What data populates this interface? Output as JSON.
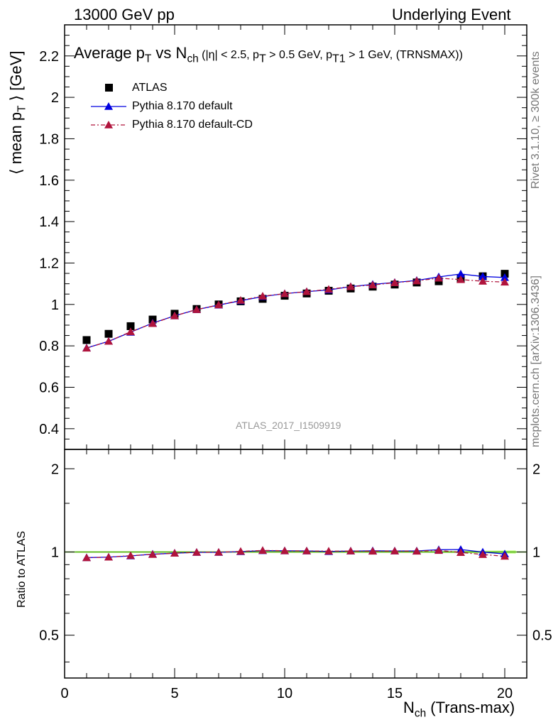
{
  "header": {
    "left": "13000 GeV pp",
    "right": "Underlying Event"
  },
  "side_labels": {
    "rivet": "Rivet 3.1.10, ≥ 300k events",
    "mcplots": "mcplots.cern.ch [arXiv:1306.3436]"
  },
  "watermark": "ATLAS_2017_I1509919",
  "chart_data": [
    {
      "type": "scatter",
      "title_main": "Average p",
      "title_main_sub": "T",
      "title_vs": " vs N",
      "title_vs_sub": "ch",
      "title_cuts": " (|η| < 2.5, p",
      "title_cuts_sub": "T",
      "title_cuts2": " > 0.5 GeV, p",
      "title_cuts2_sub": "T1",
      "title_cuts3": " > 1 GeV, (TRNSMAX))",
      "ylabel": "⟨ mean p",
      "ylabel_sub": "T",
      "ylabel_tail": " ⟩ [GeV]",
      "xlim": [
        0,
        21
      ],
      "ylim": [
        0.3,
        2.35
      ],
      "yticks": [
        "0.4",
        "0.6",
        "0.8",
        "1",
        "1.2",
        "1.4",
        "1.6",
        "1.8",
        "2",
        "2.2"
      ],
      "ytick_values": [
        0.4,
        0.6,
        0.8,
        1.0,
        1.2,
        1.4,
        1.6,
        1.8,
        2.0,
        2.2
      ],
      "legend_position": "top-left",
      "series": [
        {
          "name": "ATLAS",
          "color": "#000000",
          "marker": "square",
          "x": [
            1,
            2,
            3,
            4,
            5,
            6,
            7,
            8,
            9,
            10,
            11,
            12,
            13,
            14,
            15,
            16,
            17,
            18,
            19,
            20
          ],
          "y": [
            0.828,
            0.858,
            0.895,
            0.927,
            0.955,
            0.978,
            1.0,
            1.015,
            1.027,
            1.042,
            1.053,
            1.066,
            1.077,
            1.086,
            1.096,
            1.106,
            1.112,
            1.124,
            1.136,
            1.148
          ]
        },
        {
          "name": "Pythia 8.170 default",
          "color": "#0000e0",
          "marker": "triangle",
          "line": "solid",
          "x": [
            1,
            2,
            3,
            4,
            5,
            6,
            7,
            8,
            9,
            10,
            11,
            12,
            13,
            14,
            15,
            16,
            17,
            18,
            19,
            20
          ],
          "y": [
            0.79,
            0.822,
            0.866,
            0.91,
            0.945,
            0.975,
            0.997,
            1.018,
            1.038,
            1.052,
            1.062,
            1.07,
            1.086,
            1.097,
            1.106,
            1.116,
            1.133,
            1.147,
            1.135,
            1.13
          ]
        },
        {
          "name": "Pythia 8.170 default-CD",
          "color": "#b0143c",
          "marker": "triangle",
          "line": "dashdot",
          "x": [
            1,
            2,
            3,
            4,
            5,
            6,
            7,
            8,
            9,
            10,
            11,
            12,
            13,
            14,
            15,
            16,
            17,
            18,
            19,
            20
          ],
          "y": [
            0.789,
            0.822,
            0.868,
            0.908,
            0.945,
            0.975,
            0.998,
            1.02,
            1.04,
            1.052,
            1.062,
            1.073,
            1.086,
            1.094,
            1.105,
            1.114,
            1.127,
            1.12,
            1.112,
            1.108
          ]
        }
      ]
    },
    {
      "type": "scatter",
      "ylabel": "Ratio to ATLAS",
      "xlabel": "N",
      "xlabel_sub": "ch",
      "xlabel_tail": " (Trans-max)",
      "xlim": [
        0,
        21
      ],
      "ylim_log": [
        0.35,
        2.35
      ],
      "yticks": [
        "0.5",
        "1",
        "2"
      ],
      "ytick_values": [
        0.5,
        1,
        2
      ],
      "xticks": [
        "0",
        "5",
        "10",
        "15",
        "20"
      ],
      "xtick_values": [
        0,
        5,
        10,
        15,
        20
      ],
      "reference_band_color": "#ccff99",
      "reference_line_color": "#44aa00",
      "series": [
        {
          "name": "Pythia 8.170 default",
          "color": "#0000e0",
          "x": [
            1,
            2,
            3,
            4,
            5,
            6,
            7,
            8,
            9,
            10,
            11,
            12,
            13,
            14,
            15,
            16,
            17,
            18,
            19,
            20
          ],
          "y": [
            0.954,
            0.958,
            0.968,
            0.982,
            0.99,
            0.997,
            0.997,
            1.003,
            1.011,
            1.01,
            1.009,
            1.004,
            1.008,
            1.01,
            1.009,
            1.009,
            1.019,
            1.021,
            0.999,
            0.984
          ]
        },
        {
          "name": "Pythia 8.170 default-CD",
          "color": "#b0143c",
          "x": [
            1,
            2,
            3,
            4,
            5,
            6,
            7,
            8,
            9,
            10,
            11,
            12,
            13,
            14,
            15,
            16,
            17,
            18,
            19,
            20
          ],
          "y": [
            0.953,
            0.958,
            0.97,
            0.98,
            0.99,
            0.997,
            0.998,
            1.005,
            1.013,
            1.01,
            1.009,
            1.007,
            1.008,
            1.007,
            1.008,
            1.007,
            1.013,
            0.996,
            0.979,
            0.965
          ]
        }
      ]
    }
  ]
}
